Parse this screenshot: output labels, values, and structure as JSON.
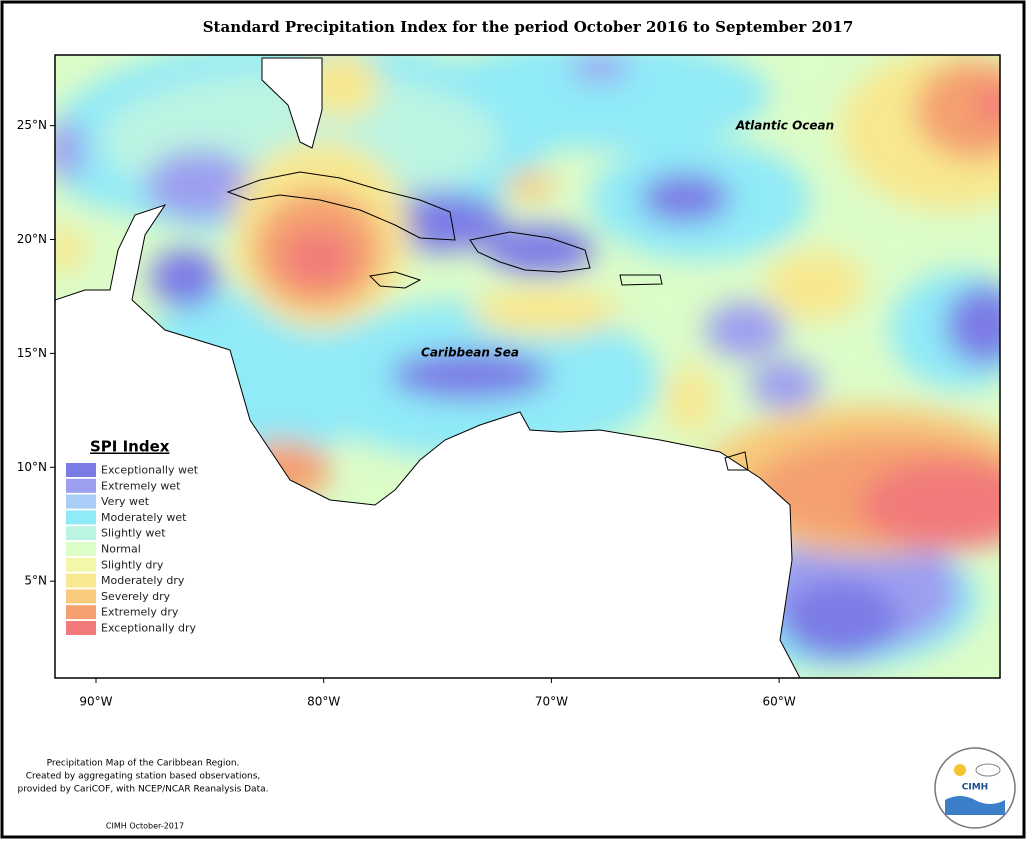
{
  "title": "Standard Precipitation Index for the period October 2016 to September 2017",
  "map": {
    "xlim": [
      -91.8,
      -50.3
    ],
    "ylim": [
      0.75,
      28.1
    ],
    "xticks": [
      {
        "value": -90,
        "label": "90°W"
      },
      {
        "value": -80,
        "label": "80°W"
      },
      {
        "value": -70,
        "label": "70°W"
      },
      {
        "value": -60,
        "label": "60°W"
      }
    ],
    "yticks": [
      {
        "value": 25,
        "label": "25°N"
      },
      {
        "value": 20,
        "label": "20°N"
      },
      {
        "value": 15,
        "label": "15°N"
      },
      {
        "value": 10,
        "label": "10°N"
      },
      {
        "value": 5,
        "label": "5°N"
      }
    ],
    "labels": [
      "Caribbean Sea",
      "Atlantic Ocean"
    ]
  },
  "legend": {
    "title": "SPI Index",
    "items": [
      {
        "name": "Exceptionally wet",
        "color": "#7b7be6"
      },
      {
        "name": "Extremely wet",
        "color": "#9c9ff0"
      },
      {
        "name": "Very wet",
        "color": "#a8cef8"
      },
      {
        "name": "Moderately wet",
        "color": "#90eaf8"
      },
      {
        "name": "Slightly wet",
        "color": "#bcf4e2"
      },
      {
        "name": "Normal",
        "color": "#dcfcc8"
      },
      {
        "name": "Slightly dry",
        "color": "#f2f8a8"
      },
      {
        "name": "Moderately dry",
        "color": "#f8e890"
      },
      {
        "name": "Severely dry",
        "color": "#f8ca7c"
      },
      {
        "name": "Extremely dry",
        "color": "#f4a070"
      },
      {
        "name": "Exceptionally dry",
        "color": "#f27a7a"
      }
    ]
  },
  "footnote": [
    "Precipitation Map of the Caribbean Region.",
    "Created by aggregating station based observations,",
    "provided by CariCOF, with NCEP/NCAR Reanalysis Data."
  ],
  "credit": "CIMH October-2017",
  "logo": "CIMH"
}
